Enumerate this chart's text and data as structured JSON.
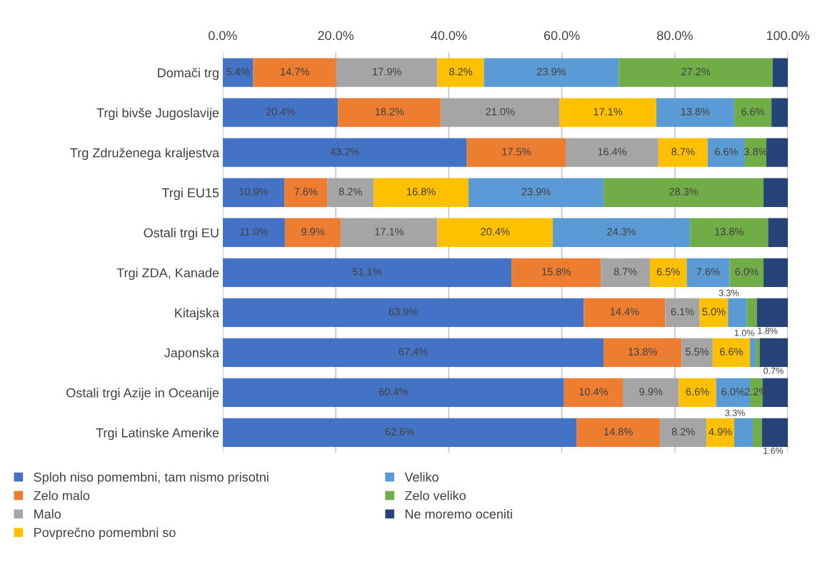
{
  "chart_data": {
    "type": "bar",
    "orientation": "horizontal",
    "stacked": true,
    "categories": [
      "Domači trg",
      "Trgi bivše Jugoslavije",
      "Trg Združenega kraljestva",
      "Trgi EU15",
      "Ostali trgi EU",
      "Trgi ZDA, Kanade",
      "Kitajska",
      "Japonska",
      "Ostali trgi Azije in Oceanije",
      "Trgi Latinske Amerike"
    ],
    "series": [
      {
        "name": "Sploh niso pomembni, tam nismo prisotni",
        "color": "#4472c4",
        "values": [
          5.4,
          20.4,
          43.2,
          10.9,
          11.0,
          51.1,
          63.9,
          67.4,
          60.4,
          62.6
        ],
        "value_labels": [
          "5.4%",
          "20.4%",
          "43.2%",
          "10.9%",
          "11.0%",
          "51.1%",
          "63.9%",
          "67.4%",
          "60.4%",
          "62.6%"
        ]
      },
      {
        "name": "Zelo malo",
        "color": "#ed7d31",
        "values": [
          14.7,
          18.2,
          17.5,
          7.6,
          9.9,
          15.8,
          14.4,
          13.8,
          10.4,
          14.8
        ],
        "value_labels": [
          "14.7%",
          "18.2%",
          "17.5%",
          "7.6%",
          "9.9%",
          "15.8%",
          "14.4%",
          "13.8%",
          "10.4%",
          "14.8%"
        ]
      },
      {
        "name": "Malo",
        "color": "#a5a5a5",
        "values": [
          17.9,
          21.0,
          16.4,
          8.2,
          17.1,
          8.7,
          6.1,
          5.5,
          9.9,
          8.2
        ],
        "value_labels": [
          "17.9%",
          "21.0%",
          "16.4%",
          "8.2%",
          "17.1%",
          "8.7%",
          "6.1%",
          "5.5%",
          "9.9%",
          "8.2%"
        ]
      },
      {
        "name": "Povprečno pomembni so",
        "color": "#ffc000",
        "values": [
          8.2,
          17.1,
          8.7,
          16.8,
          20.4,
          6.5,
          5.0,
          6.6,
          6.6,
          4.9
        ],
        "value_labels": [
          "8.2%",
          "17.1%",
          "8.7%",
          "16.8%",
          "20.4%",
          "6.5%",
          "5.0%",
          "6.6%",
          "6.6%",
          "4.9%"
        ]
      },
      {
        "name": "Veliko",
        "color": "#5b9bd5",
        "values": [
          23.9,
          13.8,
          6.6,
          23.9,
          24.3,
          7.6,
          3.3,
          1.0,
          6.0,
          3.3
        ],
        "value_labels": [
          "23.9%",
          "13.8%",
          "6.6%",
          "23.9%",
          "24.3%",
          "7.6%",
          "3.3%",
          "1.0%",
          "6.0%",
          "3.3%"
        ]
      },
      {
        "name": "Zelo veliko",
        "color": "#70ad47",
        "values": [
          27.2,
          6.6,
          3.8,
          28.3,
          13.8,
          6.0,
          1.8,
          0.7,
          2.2,
          1.6
        ],
        "value_labels": [
          "27.2%",
          "6.6%",
          "3.8%",
          "28.3%",
          "13.8%",
          "6.0%",
          "1.8%",
          "0.7%",
          "2.2%",
          "1.6%"
        ]
      },
      {
        "name": "Ne moremo oceniti",
        "color": "#264478",
        "values": [
          2.7,
          2.9,
          3.8,
          4.3,
          3.5,
          4.3,
          5.5,
          5.0,
          4.5,
          4.6
        ]
      }
    ],
    "xlim": [
      0,
      100
    ],
    "xticks": [
      {
        "value": 0,
        "label": "0.0%"
      },
      {
        "value": 20,
        "label": "20.0%"
      },
      {
        "value": 40,
        "label": "40.0%"
      },
      {
        "value": 60,
        "label": "60.0%"
      },
      {
        "value": 80,
        "label": "80.0%"
      },
      {
        "value": 100,
        "label": "100.0%"
      }
    ],
    "grid": "x",
    "legend": "bottom"
  }
}
